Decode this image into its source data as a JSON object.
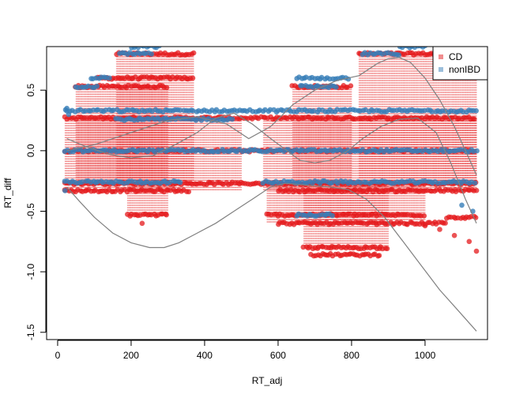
{
  "chart_data": {
    "type": "scatter",
    "title": "",
    "xlabel": "RT_adj",
    "ylabel": "RT_diff",
    "xlim": [
      -30,
      1170
    ],
    "ylim": [
      -1.56,
      0.86
    ],
    "xticks": [
      0,
      200,
      400,
      600,
      800,
      1000
    ],
    "yticks": [
      -1.5,
      -1.0,
      -0.5,
      0.0,
      0.5
    ],
    "ytick_labels": [
      "-1.5",
      "-1.0",
      "-0.5",
      "0.0",
      "0.5"
    ],
    "grid": false,
    "legend": {
      "position": "top-right"
    },
    "series": [
      {
        "name": "CD",
        "color": "#E41A1C",
        "levels": [
          {
            "y": 0.8,
            "xmin": 160,
            "xmax": 370
          },
          {
            "y": 0.8,
            "xmin": 820,
            "xmax": 1140
          },
          {
            "y": 0.6,
            "xmin": 110,
            "xmax": 370
          },
          {
            "y": 0.53,
            "xmin": 50,
            "xmax": 300
          },
          {
            "y": 0.53,
            "xmin": 640,
            "xmax": 800
          },
          {
            "y": 0.27,
            "xmin": 20,
            "xmax": 1140
          },
          {
            "y": 0.0,
            "xmin": 20,
            "xmax": 1140
          },
          {
            "y": -0.27,
            "xmin": 20,
            "xmax": 1140
          },
          {
            "y": -0.33,
            "xmin": 20,
            "xmax": 360
          },
          {
            "y": -0.33,
            "xmin": 600,
            "xmax": 1140
          },
          {
            "y": -0.53,
            "xmin": 190,
            "xmax": 300
          },
          {
            "y": -0.53,
            "xmin": 570,
            "xmax": 1000
          },
          {
            "y": -0.55,
            "xmin": 1060,
            "xmax": 1140
          },
          {
            "y": -0.6,
            "xmin": 600,
            "xmax": 1060
          },
          {
            "y": -0.8,
            "xmin": 670,
            "xmax": 900
          },
          {
            "y": -0.86,
            "xmin": 690,
            "xmax": 880
          }
        ],
        "scattered_points": [
          {
            "x": 230,
            "y": -0.6
          },
          {
            "x": 1080,
            "y": -0.7
          },
          {
            "x": 1120,
            "y": -0.75
          },
          {
            "x": 1140,
            "y": -0.83
          },
          {
            "x": 1000,
            "y": -0.62
          },
          {
            "x": 1040,
            "y": -0.65
          }
        ]
      },
      {
        "name": "nonIBD",
        "color": "#377EB8",
        "levels": [
          {
            "y": 0.86,
            "xmin": 200,
            "xmax": 280
          },
          {
            "y": 0.86,
            "xmin": 930,
            "xmax": 1000
          },
          {
            "y": 0.8,
            "xmin": 170,
            "xmax": 260
          },
          {
            "y": 0.8,
            "xmin": 830,
            "xmax": 930
          },
          {
            "y": 0.6,
            "xmin": 90,
            "xmax": 140
          },
          {
            "y": 0.6,
            "xmin": 650,
            "xmax": 790
          },
          {
            "y": 0.53,
            "xmin": 50,
            "xmax": 110
          },
          {
            "y": 0.53,
            "xmin": 660,
            "xmax": 760
          },
          {
            "y": 0.33,
            "xmin": 20,
            "xmax": 1140
          },
          {
            "y": 0.26,
            "xmin": 160,
            "xmax": 480
          },
          {
            "y": 0.0,
            "xmin": 20,
            "xmax": 1140
          },
          {
            "y": -0.26,
            "xmin": 20,
            "xmax": 340
          },
          {
            "y": -0.26,
            "xmin": 560,
            "xmax": 1140
          },
          {
            "y": -0.53,
            "xmin": 650,
            "xmax": 750
          }
        ],
        "scattered_points": [
          {
            "x": 25,
            "y": 0.35
          },
          {
            "x": 30,
            "y": 0.3
          },
          {
            "x": 20,
            "y": -0.33
          },
          {
            "x": 1100,
            "y": -0.45
          },
          {
            "x": 1130,
            "y": -0.5
          }
        ]
      }
    ],
    "smooth_curves": [
      {
        "color": "#808080",
        "points": [
          [
            25,
            -0.3
          ],
          [
            60,
            -0.42
          ],
          [
            100,
            -0.55
          ],
          [
            150,
            -0.68
          ],
          [
            200,
            -0.76
          ],
          [
            250,
            -0.8
          ],
          [
            290,
            -0.8
          ],
          [
            330,
            -0.76
          ],
          [
            380,
            -0.68
          ],
          [
            430,
            -0.6
          ],
          [
            480,
            -0.5
          ],
          [
            530,
            -0.4
          ],
          [
            580,
            -0.3
          ],
          [
            620,
            -0.27
          ],
          [
            660,
            -0.28
          ],
          [
            700,
            -0.29
          ],
          [
            740,
            -0.3
          ],
          [
            790,
            -0.32
          ],
          [
            840,
            -0.4
          ],
          [
            890,
            -0.55
          ],
          [
            940,
            -0.75
          ],
          [
            990,
            -0.95
          ],
          [
            1040,
            -1.15
          ],
          [
            1090,
            -1.32
          ],
          [
            1140,
            -1.49
          ]
        ]
      },
      {
        "color": "#808080",
        "points": [
          [
            25,
            0.1
          ],
          [
            80,
            0.03
          ],
          [
            140,
            -0.03
          ],
          [
            200,
            -0.06
          ],
          [
            260,
            -0.04
          ],
          [
            320,
            0.05
          ],
          [
            380,
            0.15
          ],
          [
            430,
            0.27
          ],
          [
            480,
            0.31
          ],
          [
            530,
            0.22
          ],
          [
            580,
            0.1
          ],
          [
            620,
            0.01
          ],
          [
            660,
            -0.08
          ],
          [
            700,
            -0.1
          ],
          [
            740,
            -0.08
          ],
          [
            790,
            0.0
          ],
          [
            830,
            0.1
          ],
          [
            880,
            0.2
          ],
          [
            930,
            0.26
          ],
          [
            980,
            0.27
          ],
          [
            1030,
            0.15
          ],
          [
            1070,
            -0.1
          ],
          [
            1110,
            -0.4
          ],
          [
            1140,
            -0.6
          ]
        ]
      },
      {
        "color": "#808080",
        "points": [
          [
            25,
            0.0
          ],
          [
            100,
            0.05
          ],
          [
            200,
            0.15
          ],
          [
            300,
            0.25
          ],
          [
            380,
            0.28
          ],
          [
            460,
            0.22
          ],
          [
            520,
            0.1
          ],
          [
            580,
            0.2
          ],
          [
            640,
            0.38
          ],
          [
            700,
            0.5
          ],
          [
            760,
            0.58
          ],
          [
            820,
            0.62
          ],
          [
            870,
            0.72
          ],
          [
            900,
            0.76
          ],
          [
            930,
            0.77
          ],
          [
            960,
            0.73
          ],
          [
            1000,
            0.6
          ],
          [
            1040,
            0.42
          ],
          [
            1080,
            0.2
          ],
          [
            1110,
            0.0
          ],
          [
            1140,
            -0.2
          ]
        ]
      }
    ]
  }
}
